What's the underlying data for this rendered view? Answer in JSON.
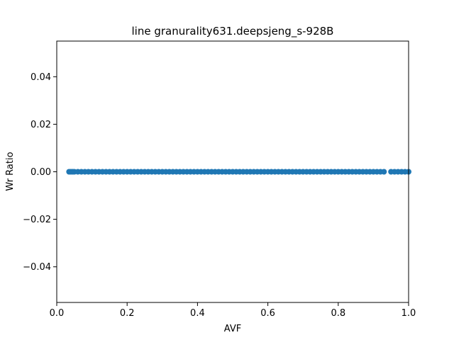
{
  "chart_data": {
    "type": "scatter",
    "title": "line granurality631.deepsjeng_s-928B",
    "xlabel": "AVF",
    "ylabel": "Wr Ratio",
    "xlim": [
      0.0,
      1.0
    ],
    "ylim": [
      -0.055,
      0.055
    ],
    "xticks": [
      0.0,
      0.2,
      0.4,
      0.6,
      0.8,
      1.0
    ],
    "xtick_labels": [
      "0.0",
      "0.2",
      "0.4",
      "0.6",
      "0.8",
      "1.0"
    ],
    "yticks": [
      -0.04,
      -0.02,
      0.0,
      0.02,
      0.04
    ],
    "ytick_labels": [
      "−0.04",
      "−0.02",
      "0.00",
      "0.02",
      "0.04"
    ],
    "grid": false,
    "legend": "none",
    "series": [
      {
        "color": "#1f77b4",
        "x": [
          0.035,
          0.04,
          0.045,
          0.05,
          0.06,
          0.07,
          0.08,
          0.09,
          0.1,
          0.11,
          0.12,
          0.13,
          0.14,
          0.15,
          0.16,
          0.17,
          0.18,
          0.19,
          0.2,
          0.21,
          0.22,
          0.23,
          0.24,
          0.25,
          0.26,
          0.27,
          0.28,
          0.29,
          0.3,
          0.31,
          0.32,
          0.33,
          0.34,
          0.35,
          0.36,
          0.37,
          0.38,
          0.39,
          0.4,
          0.41,
          0.42,
          0.43,
          0.44,
          0.45,
          0.46,
          0.47,
          0.48,
          0.49,
          0.5,
          0.51,
          0.52,
          0.53,
          0.54,
          0.55,
          0.56,
          0.57,
          0.58,
          0.59,
          0.6,
          0.61,
          0.62,
          0.63,
          0.64,
          0.65,
          0.66,
          0.67,
          0.68,
          0.69,
          0.7,
          0.71,
          0.72,
          0.73,
          0.74,
          0.75,
          0.76,
          0.77,
          0.78,
          0.79,
          0.8,
          0.81,
          0.82,
          0.83,
          0.84,
          0.85,
          0.86,
          0.87,
          0.88,
          0.89,
          0.9,
          0.91,
          0.92,
          0.93,
          0.95,
          0.96,
          0.97,
          0.98,
          0.99,
          1.0
        ],
        "y": [
          0,
          0,
          0,
          0,
          0,
          0,
          0,
          0,
          0,
          0,
          0,
          0,
          0,
          0,
          0,
          0,
          0,
          0,
          0,
          0,
          0,
          0,
          0,
          0,
          0,
          0,
          0,
          0,
          0,
          0,
          0,
          0,
          0,
          0,
          0,
          0,
          0,
          0,
          0,
          0,
          0,
          0,
          0,
          0,
          0,
          0,
          0,
          0,
          0,
          0,
          0,
          0,
          0,
          0,
          0,
          0,
          0,
          0,
          0,
          0,
          0,
          0,
          0,
          0,
          0,
          0,
          0,
          0,
          0,
          0,
          0,
          0,
          0,
          0,
          0,
          0,
          0,
          0,
          0,
          0,
          0,
          0,
          0,
          0,
          0,
          0,
          0,
          0,
          0,
          0,
          0,
          0,
          0,
          0,
          0,
          0,
          0,
          0
        ]
      }
    ]
  }
}
